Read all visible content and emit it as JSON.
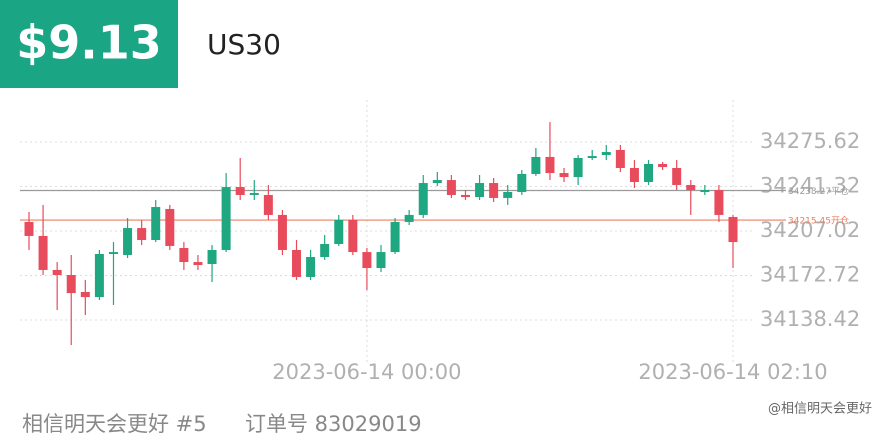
{
  "header": {
    "profit": "$9.13",
    "symbol": "US30"
  },
  "chart_data": {
    "type": "candlestick",
    "categories": [
      null,
      null,
      null,
      null,
      null,
      null,
      null,
      null,
      null,
      null,
      null,
      null,
      null,
      null,
      null,
      null,
      null,
      null,
      null,
      null,
      null,
      null,
      null,
      null,
      "2023-06-14 00:00",
      null,
      null,
      null,
      null,
      null,
      null,
      null,
      null,
      null,
      null,
      null,
      null,
      null,
      null,
      null,
      null,
      null,
      null,
      null,
      null,
      null,
      null,
      null,
      null,
      null,
      "2023-06-14 02:10"
    ],
    "open": [
      34214.0,
      34203.2,
      34177.0,
      34173.1,
      34160.0,
      34156.1,
      34189.3,
      34188.5,
      34209.3,
      34200.1,
      34224.0,
      34193.9,
      34183.1,
      34181.6,
      34192.4,
      34240.9,
      34234.8,
      34234.8,
      34219.4,
      34192.4,
      34171.6,
      34187.0,
      34197.0,
      34215.5,
      34190.8,
      34178.5,
      34190.8,
      34214.0,
      34219.4,
      34244.0,
      34246.3,
      34234.8,
      34233.2,
      34244.0,
      34232.5,
      34237.1,
      34251.0,
      34264.1,
      34251.7,
      34248.6,
      34263.3,
      34265.6,
      34269.5,
      34255.6,
      34244.8,
      34258.7,
      34255.6,
      34242.5,
      34237.1,
      34238.6,
      34217.8
    ],
    "high": [
      34221.7,
      34227.1,
      34183.1,
      34188.5,
      34169.3,
      34192.4,
      34198.5,
      34217.0,
      34215.5,
      34230.9,
      34227.1,
      34198.5,
      34188.5,
      34196.2,
      34251.7,
      34263.3,
      34246.3,
      34242.5,
      34223.2,
      34200.1,
      34192.4,
      34203.9,
      34219.4,
      34219.4,
      34193.9,
      34196.2,
      34217.0,
      34223.2,
      34250.2,
      34252.5,
      34250.2,
      34238.6,
      34250.2,
      34247.9,
      34242.5,
      34254.0,
      34271.0,
      34291.0,
      34255.6,
      34265.6,
      34269.5,
      34273.3,
      34273.3,
      34261.7,
      34261.7,
      34260.2,
      34261.7,
      34246.3,
      34242.5,
      34242.5,
      34219.4
    ],
    "low": [
      34192.4,
      34173.1,
      34146.1,
      34119.1,
      34142.3,
      34153.8,
      34150.0,
      34186.2,
      34196.2,
      34198.5,
      34192.4,
      34177.0,
      34177.0,
      34167.7,
      34190.8,
      34230.9,
      34230.9,
      34215.5,
      34188.5,
      34169.3,
      34169.3,
      34184.7,
      34195.5,
      34188.5,
      34161.5,
      34175.4,
      34189.3,
      34211.6,
      34217.0,
      34241.7,
      34232.5,
      34230.9,
      34230.9,
      34229.4,
      34227.1,
      34234.8,
      34249.4,
      34246.3,
      34244.8,
      34242.5,
      34261.7,
      34261.7,
      34252.5,
      34240.2,
      34242.5,
      34254.0,
      34238.6,
      34219.4,
      34234.8,
      34214.0,
      34178.5
    ],
    "close": [
      34203.2,
      34177.0,
      34173.1,
      34159.2,
      34156.1,
      34189.3,
      34190.8,
      34209.3,
      34200.1,
      34225.5,
      34195.5,
      34183.1,
      34180.8,
      34192.4,
      34240.9,
      34234.8,
      34236.3,
      34219.4,
      34192.4,
      34171.6,
      34187.0,
      34197.0,
      34215.5,
      34190.8,
      34178.5,
      34190.8,
      34214.0,
      34219.4,
      34244.0,
      34246.3,
      34234.8,
      34233.2,
      34244.0,
      34232.5,
      34237.1,
      34251.0,
      34264.1,
      34251.7,
      34248.6,
      34263.3,
      34264.8,
      34267.9,
      34255.6,
      34244.8,
      34258.7,
      34256.3,
      34242.5,
      34238.6,
      34238.6,
      34219.4,
      34198.5
    ],
    "up_color": "#1ea780",
    "down_color": "#e84b5b",
    "ylim": [
      34115.3,
      34308.0
    ],
    "yticks": [
      34138.42,
      34172.72,
      34207.02,
      34241.32,
      34275.62
    ],
    "grid": true,
    "reference_lines": [
      {
        "value": 34238.27,
        "label": "34238.27平仓",
        "color": "#9a9a9a"
      },
      {
        "value": 34215.45,
        "label": "34215.45开仓",
        "color": "#ef7d5c"
      }
    ]
  },
  "footer": {
    "account": "相信明天会更好 #5",
    "order": "订单号 83029019",
    "watermark": "@相信明天会更好"
  }
}
